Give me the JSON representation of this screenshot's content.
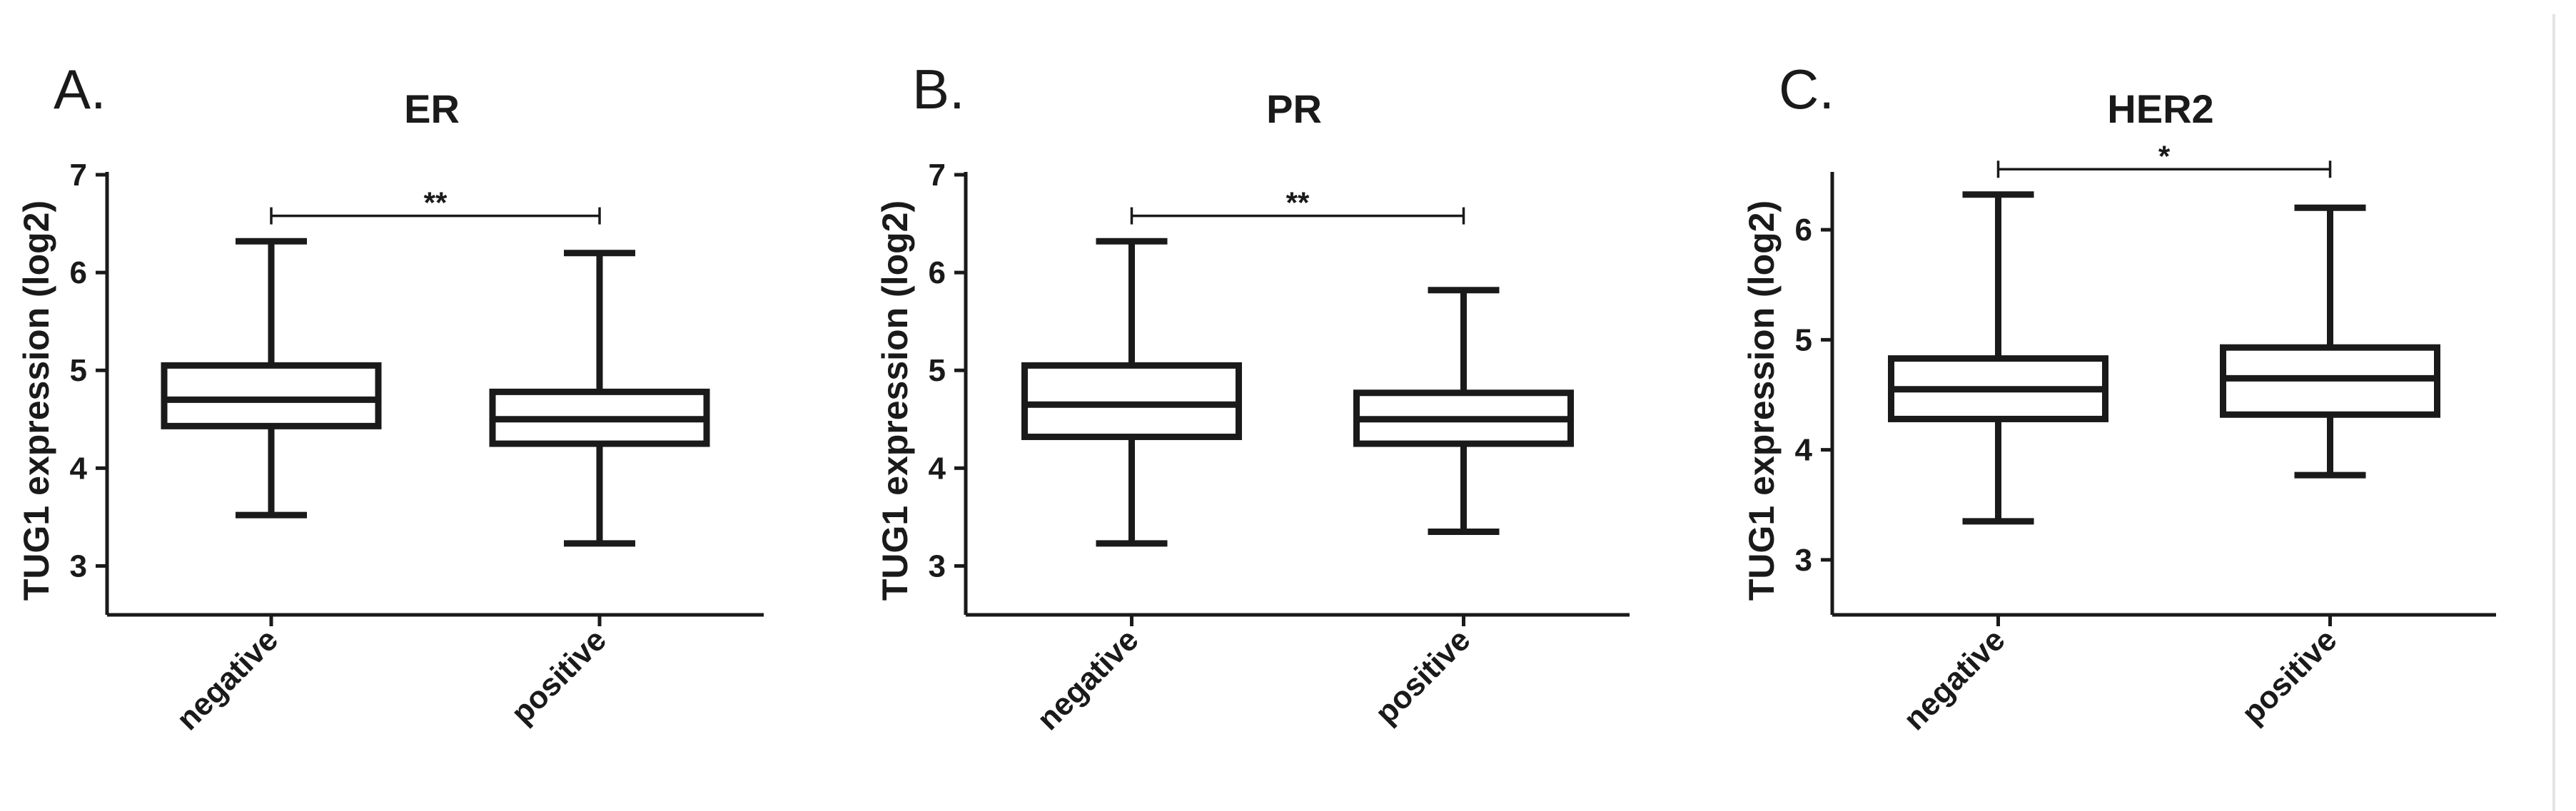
{
  "chart_data": [
    {
      "type": "box",
      "panel_letter": "A.",
      "title": "ER",
      "ylabel": "TUG1 expression (log2)",
      "xlabel": "",
      "ylim": [
        2.5,
        7
      ],
      "yticks": [
        3,
        4,
        5,
        6,
        7
      ],
      "categories": [
        "negative",
        "positive"
      ],
      "boxes": [
        {
          "category": "negative",
          "min": 3.52,
          "q1": 4.43,
          "median": 4.7,
          "q3": 5.05,
          "max": 6.32
        },
        {
          "category": "positive",
          "min": 3.23,
          "q1": 4.25,
          "median": 4.5,
          "q3": 4.78,
          "max": 6.2
        }
      ],
      "significance": {
        "label": "**",
        "between": [
          "negative",
          "positive"
        ],
        "y": 6.58
      }
    },
    {
      "type": "box",
      "panel_letter": "B.",
      "title": "PR",
      "ylabel": "TUG1 expression (log2)",
      "xlabel": "",
      "ylim": [
        2.5,
        7
      ],
      "yticks": [
        3,
        4,
        5,
        6,
        7
      ],
      "categories": [
        "negative",
        "positive"
      ],
      "boxes": [
        {
          "category": "negative",
          "min": 3.23,
          "q1": 4.32,
          "median": 4.65,
          "q3": 5.05,
          "max": 6.32
        },
        {
          "category": "positive",
          "min": 3.35,
          "q1": 4.25,
          "median": 4.5,
          "q3": 4.77,
          "max": 5.82
        }
      ],
      "significance": {
        "label": "**",
        "between": [
          "negative",
          "positive"
        ],
        "y": 6.58
      }
    },
    {
      "type": "box",
      "panel_letter": "C.",
      "title": "HER2",
      "ylabel": "TUG1 expression (log2)",
      "xlabel": "",
      "ylim": [
        2.5,
        6.5
      ],
      "yticks": [
        3,
        4,
        5,
        6
      ],
      "categories": [
        "negative",
        "positive"
      ],
      "boxes": [
        {
          "category": "negative",
          "min": 3.35,
          "q1": 4.28,
          "median": 4.55,
          "q3": 4.83,
          "max": 6.32
        },
        {
          "category": "positive",
          "min": 3.77,
          "q1": 4.32,
          "median": 4.65,
          "q3": 4.93,
          "max": 6.2
        }
      ],
      "significance": {
        "label": "*",
        "between": [
          "negative",
          "positive"
        ],
        "y": 6.55
      }
    }
  ]
}
